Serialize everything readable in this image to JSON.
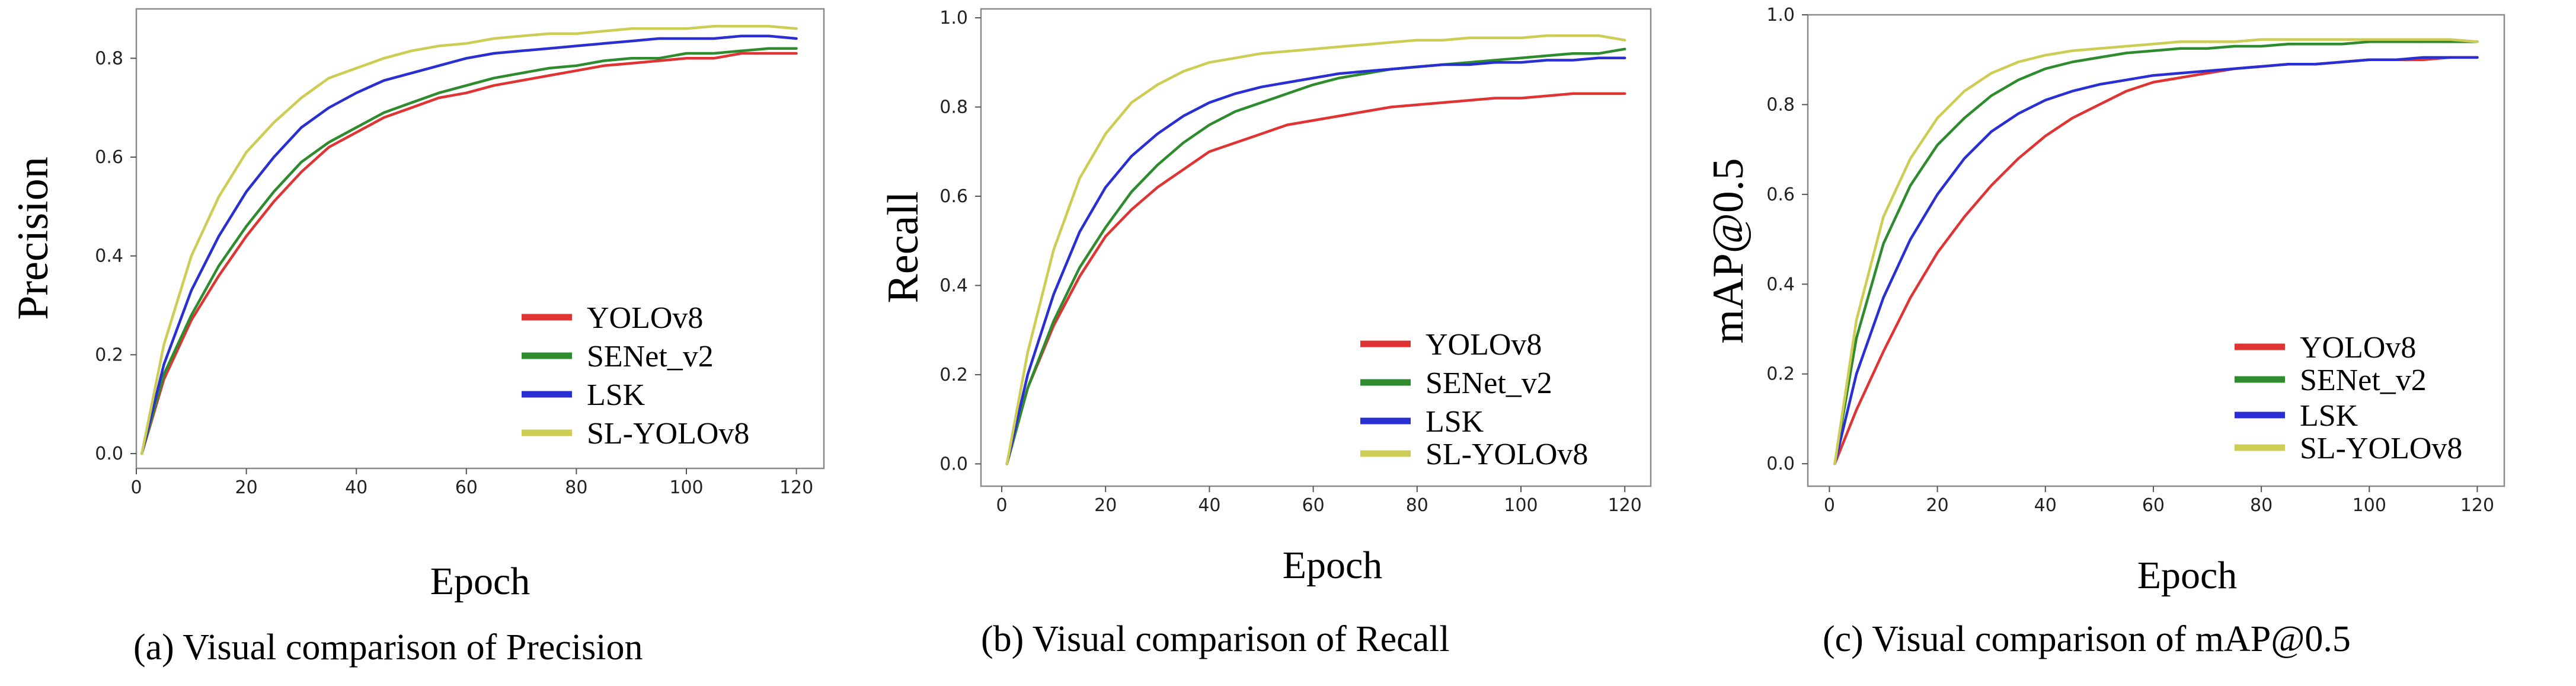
{
  "chart_data": [
    {
      "type": "line",
      "caption": "(a) Visual comparison of Precision",
      "xlabel": "Epoch",
      "ylabel": "Precision",
      "xlim": [
        0,
        125
      ],
      "ylim": [
        -0.03,
        0.9
      ],
      "xticks": [
        0,
        20,
        40,
        60,
        80,
        100,
        120
      ],
      "yticks": [
        0.0,
        0.2,
        0.4,
        0.6,
        0.8
      ],
      "ytick_labels": [
        "0.0",
        "0.2",
        "0.4",
        "0.6",
        "0.8"
      ],
      "legend_position": "lower-right",
      "series": [
        {
          "name": "YOLOv8",
          "color": "#e03434",
          "x": [
            1,
            5,
            10,
            15,
            20,
            25,
            30,
            35,
            40,
            45,
            50,
            55,
            60,
            65,
            70,
            75,
            80,
            85,
            90,
            95,
            100,
            105,
            110,
            115,
            120
          ],
          "values": [
            0.0,
            0.15,
            0.27,
            0.36,
            0.44,
            0.51,
            0.57,
            0.62,
            0.65,
            0.68,
            0.7,
            0.72,
            0.73,
            0.745,
            0.755,
            0.765,
            0.775,
            0.785,
            0.79,
            0.795,
            0.8,
            0.8,
            0.81,
            0.81,
            0.81
          ]
        },
        {
          "name": "SENet_v2",
          "color": "#2e8b2e",
          "x": [
            1,
            5,
            10,
            15,
            20,
            25,
            30,
            35,
            40,
            45,
            50,
            55,
            60,
            65,
            70,
            75,
            80,
            85,
            90,
            95,
            100,
            105,
            110,
            115,
            120
          ],
          "values": [
            0.0,
            0.16,
            0.28,
            0.38,
            0.46,
            0.53,
            0.59,
            0.63,
            0.66,
            0.69,
            0.71,
            0.73,
            0.745,
            0.76,
            0.77,
            0.78,
            0.785,
            0.795,
            0.8,
            0.8,
            0.81,
            0.81,
            0.815,
            0.82,
            0.82
          ]
        },
        {
          "name": "LSK",
          "color": "#2a2fd4",
          "x": [
            1,
            5,
            10,
            15,
            20,
            25,
            30,
            35,
            40,
            45,
            50,
            55,
            60,
            65,
            70,
            75,
            80,
            85,
            90,
            95,
            100,
            105,
            110,
            115,
            120
          ],
          "values": [
            0.0,
            0.18,
            0.33,
            0.44,
            0.53,
            0.6,
            0.66,
            0.7,
            0.73,
            0.755,
            0.77,
            0.785,
            0.8,
            0.81,
            0.815,
            0.82,
            0.825,
            0.83,
            0.835,
            0.84,
            0.84,
            0.84,
            0.845,
            0.845,
            0.84
          ]
        },
        {
          "name": "SL-YOLOv8",
          "color": "#cdcd55",
          "x": [
            1,
            5,
            10,
            15,
            20,
            25,
            30,
            35,
            40,
            45,
            50,
            55,
            60,
            65,
            70,
            75,
            80,
            85,
            90,
            95,
            100,
            105,
            110,
            115,
            120
          ],
          "values": [
            0.0,
            0.22,
            0.4,
            0.52,
            0.61,
            0.67,
            0.72,
            0.76,
            0.78,
            0.8,
            0.815,
            0.825,
            0.83,
            0.84,
            0.845,
            0.85,
            0.85,
            0.855,
            0.86,
            0.86,
            0.86,
            0.865,
            0.865,
            0.865,
            0.86
          ]
        }
      ]
    },
    {
      "type": "line",
      "caption": "(b) Visual comparison of Recall",
      "xlabel": "Epoch",
      "ylabel": "Recall",
      "xlim": [
        -4,
        125
      ],
      "ylim": [
        -0.05,
        1.02
      ],
      "xticks": [
        0,
        20,
        40,
        60,
        80,
        100,
        120
      ],
      "yticks": [
        0.0,
        0.2,
        0.4,
        0.6,
        0.8,
        1.0
      ],
      "ytick_labels": [
        "0.0",
        "0.2",
        "0.4",
        "0.6",
        "0.8",
        "1.0"
      ],
      "legend_position": "lower-right",
      "series": [
        {
          "name": "YOLOv8",
          "color": "#e03434",
          "x": [
            1,
            5,
            10,
            15,
            20,
            25,
            30,
            35,
            40,
            45,
            50,
            55,
            60,
            65,
            70,
            75,
            80,
            85,
            90,
            95,
            100,
            105,
            110,
            115,
            120
          ],
          "values": [
            0.0,
            0.17,
            0.31,
            0.42,
            0.51,
            0.57,
            0.62,
            0.66,
            0.7,
            0.72,
            0.74,
            0.76,
            0.77,
            0.78,
            0.79,
            0.8,
            0.805,
            0.81,
            0.815,
            0.82,
            0.82,
            0.825,
            0.83,
            0.83,
            0.83
          ]
        },
        {
          "name": "SENet_v2",
          "color": "#2e8b2e",
          "x": [
            1,
            5,
            10,
            15,
            20,
            25,
            30,
            35,
            40,
            45,
            50,
            55,
            60,
            65,
            70,
            75,
            80,
            85,
            90,
            95,
            100,
            105,
            110,
            115,
            120
          ],
          "values": [
            0.0,
            0.17,
            0.32,
            0.44,
            0.53,
            0.61,
            0.67,
            0.72,
            0.76,
            0.79,
            0.81,
            0.83,
            0.85,
            0.865,
            0.875,
            0.885,
            0.89,
            0.895,
            0.9,
            0.905,
            0.91,
            0.915,
            0.92,
            0.92,
            0.93
          ]
        },
        {
          "name": "LSK",
          "color": "#2a2fd4",
          "x": [
            1,
            5,
            10,
            15,
            20,
            25,
            30,
            35,
            40,
            45,
            50,
            55,
            60,
            65,
            70,
            75,
            80,
            85,
            90,
            95,
            100,
            105,
            110,
            115,
            120
          ],
          "values": [
            0.0,
            0.2,
            0.38,
            0.52,
            0.62,
            0.69,
            0.74,
            0.78,
            0.81,
            0.83,
            0.845,
            0.855,
            0.865,
            0.875,
            0.88,
            0.885,
            0.89,
            0.895,
            0.895,
            0.9,
            0.9,
            0.905,
            0.905,
            0.91,
            0.91
          ]
        },
        {
          "name": "SL-YOLOv8",
          "color": "#cdcd55",
          "x": [
            1,
            5,
            10,
            15,
            20,
            25,
            30,
            35,
            40,
            45,
            50,
            55,
            60,
            65,
            70,
            75,
            80,
            85,
            90,
            95,
            100,
            105,
            110,
            115,
            120
          ],
          "values": [
            0.0,
            0.25,
            0.48,
            0.64,
            0.74,
            0.81,
            0.85,
            0.88,
            0.9,
            0.91,
            0.92,
            0.925,
            0.93,
            0.935,
            0.94,
            0.945,
            0.95,
            0.95,
            0.955,
            0.955,
            0.955,
            0.96,
            0.96,
            0.96,
            0.95
          ]
        }
      ]
    },
    {
      "type": "line",
      "caption": "(c) Visual comparison of mAP@0.5",
      "xlabel": "Epoch",
      "ylabel": "mAP@0.5",
      "xlim": [
        -4,
        125
      ],
      "ylim": [
        -0.05,
        1.0
      ],
      "xticks": [
        0,
        20,
        40,
        60,
        80,
        100,
        120
      ],
      "yticks": [
        0.0,
        0.2,
        0.4,
        0.6,
        0.8,
        1.0
      ],
      "ytick_labels": [
        "0.0",
        "0.2",
        "0.4",
        "0.6",
        "0.8",
        "1.0"
      ],
      "legend_position": "lower-right",
      "series": [
        {
          "name": "YOLOv8",
          "color": "#e03434",
          "x": [
            1,
            5,
            10,
            15,
            20,
            25,
            30,
            35,
            40,
            45,
            50,
            55,
            60,
            65,
            70,
            75,
            80,
            85,
            90,
            95,
            100,
            105,
            110,
            115,
            120
          ],
          "values": [
            0.0,
            0.12,
            0.25,
            0.37,
            0.47,
            0.55,
            0.62,
            0.68,
            0.73,
            0.77,
            0.8,
            0.83,
            0.85,
            0.86,
            0.87,
            0.88,
            0.885,
            0.89,
            0.89,
            0.895,
            0.9,
            0.9,
            0.9,
            0.905,
            0.905
          ]
        },
        {
          "name": "SENet_v2",
          "color": "#2e8b2e",
          "x": [
            1,
            5,
            10,
            15,
            20,
            25,
            30,
            35,
            40,
            45,
            50,
            55,
            60,
            65,
            70,
            75,
            80,
            85,
            90,
            95,
            100,
            105,
            110,
            115,
            120
          ],
          "values": [
            0.0,
            0.28,
            0.49,
            0.62,
            0.71,
            0.77,
            0.82,
            0.855,
            0.88,
            0.895,
            0.905,
            0.915,
            0.92,
            0.925,
            0.925,
            0.93,
            0.93,
            0.935,
            0.935,
            0.935,
            0.94,
            0.94,
            0.94,
            0.94,
            0.94
          ]
        },
        {
          "name": "LSK",
          "color": "#2a2fd4",
          "x": [
            1,
            5,
            10,
            15,
            20,
            25,
            30,
            35,
            40,
            45,
            50,
            55,
            60,
            65,
            70,
            75,
            80,
            85,
            90,
            95,
            100,
            105,
            110,
            115,
            120
          ],
          "values": [
            0.0,
            0.2,
            0.37,
            0.5,
            0.6,
            0.68,
            0.74,
            0.78,
            0.81,
            0.83,
            0.845,
            0.855,
            0.865,
            0.87,
            0.875,
            0.88,
            0.885,
            0.89,
            0.89,
            0.895,
            0.9,
            0.9,
            0.905,
            0.905,
            0.905
          ]
        },
        {
          "name": "SL-YOLOv8",
          "color": "#cdcd55",
          "x": [
            1,
            5,
            10,
            15,
            20,
            25,
            30,
            35,
            40,
            45,
            50,
            55,
            60,
            65,
            70,
            75,
            80,
            85,
            90,
            95,
            100,
            105,
            110,
            115,
            120
          ],
          "values": [
            0.0,
            0.32,
            0.55,
            0.68,
            0.77,
            0.83,
            0.87,
            0.895,
            0.91,
            0.92,
            0.925,
            0.93,
            0.935,
            0.94,
            0.94,
            0.94,
            0.945,
            0.945,
            0.945,
            0.945,
            0.945,
            0.945,
            0.945,
            0.945,
            0.94
          ]
        }
      ]
    }
  ]
}
